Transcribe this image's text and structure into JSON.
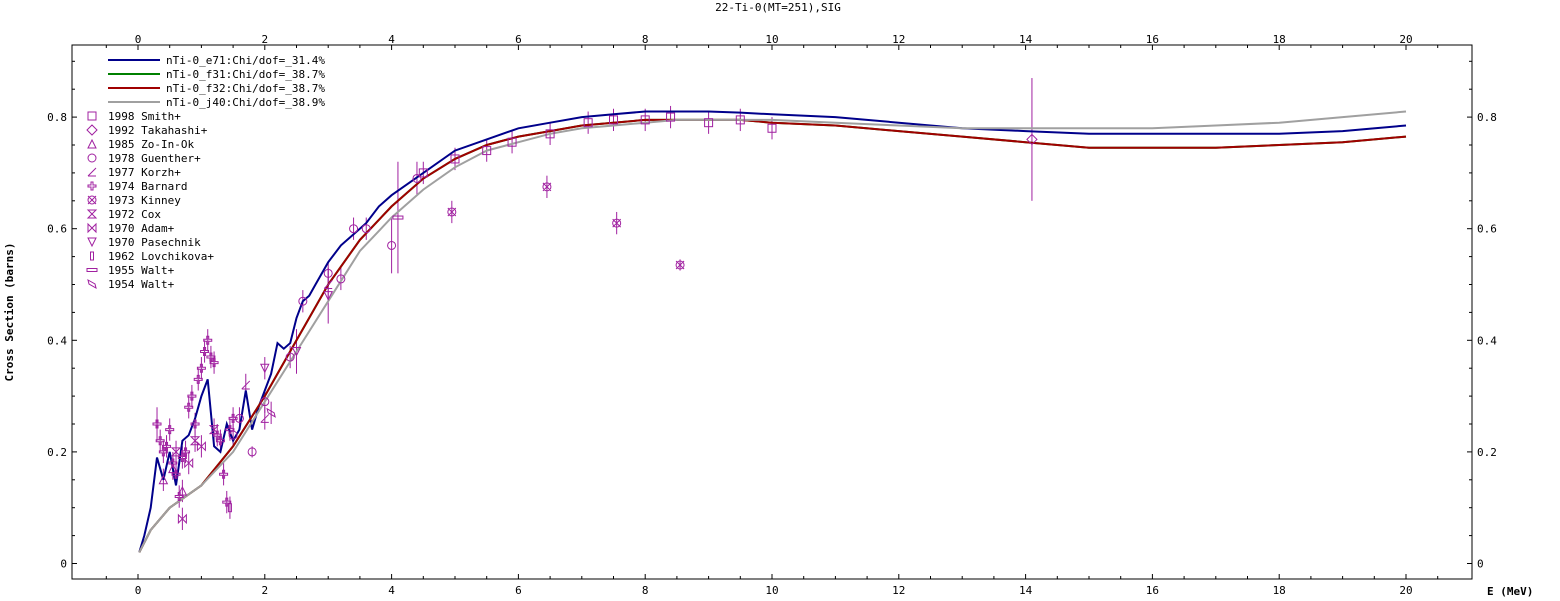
{
  "chart_data": {
    "type": "line",
    "title": "22-Ti-0(MT=251),SIG",
    "xlabel": "E (MeV)",
    "ylabel": "Cross Section (barns)",
    "xlim": [
      -1.0,
      21.0
    ],
    "ylim": [
      -0.015,
      0.925
    ],
    "x_ticks": [
      0,
      2,
      4,
      6,
      8,
      10,
      12,
      14,
      16,
      18,
      20
    ],
    "x_tick_labels": [
      "0",
      "2",
      "4",
      "6",
      "8",
      "10",
      "12",
      "14",
      "16",
      "18",
      "20"
    ],
    "y_ticks": [
      0,
      0.2,
      0.4,
      0.6,
      0.8
    ],
    "y_tick_labels": [
      "0",
      "0.2",
      "0.4",
      "0.6",
      "0.8"
    ],
    "grid": false,
    "legend_position": "top-left",
    "series": [
      {
        "name": "nTi-0_e71:Chi/dof=_31.4%",
        "color": "#00008b",
        "x": [
          0.02,
          0.1,
          0.2,
          0.3,
          0.4,
          0.5,
          0.6,
          0.7,
          0.8,
          0.9,
          1.0,
          1.1,
          1.2,
          1.3,
          1.4,
          1.5,
          1.6,
          1.7,
          1.8,
          1.9,
          2.0,
          2.1,
          2.2,
          2.3,
          2.4,
          2.5,
          2.6,
          2.7,
          2.8,
          2.9,
          3.0,
          3.2,
          3.4,
          3.6,
          3.8,
          4.0,
          4.5,
          5.0,
          5.5,
          6.0,
          6.5,
          7.0,
          7.5,
          8.0,
          8.5,
          9.0,
          9.5,
          10.0,
          11.0,
          12.0,
          13.0,
          14.0,
          15.0,
          16.0,
          17.0,
          18.0,
          19.0,
          20.0
        ],
        "y": [
          0.02,
          0.05,
          0.1,
          0.19,
          0.15,
          0.2,
          0.14,
          0.22,
          0.23,
          0.26,
          0.3,
          0.33,
          0.21,
          0.2,
          0.25,
          0.22,
          0.24,
          0.31,
          0.24,
          0.28,
          0.31,
          0.34,
          0.395,
          0.385,
          0.395,
          0.44,
          0.47,
          0.48,
          0.5,
          0.52,
          0.54,
          0.57,
          0.59,
          0.61,
          0.64,
          0.66,
          0.7,
          0.74,
          0.76,
          0.78,
          0.79,
          0.8,
          0.805,
          0.81,
          0.81,
          0.81,
          0.808,
          0.805,
          0.8,
          0.79,
          0.78,
          0.775,
          0.77,
          0.77,
          0.77,
          0.77,
          0.775,
          0.785
        ]
      },
      {
        "name": "nTi-0_f31:Chi/dof=_38.7%",
        "color": "#008000",
        "x": [
          0.02,
          0.2,
          0.5,
          1.0,
          1.5,
          2.0,
          2.5,
          3.0,
          3.5,
          4.0,
          4.5,
          5.0,
          5.5,
          6.0,
          6.5,
          7.0,
          7.5,
          8.0,
          8.5,
          9.0,
          9.5,
          10.0,
          11.0,
          12.0,
          13.0,
          14.0,
          15.0,
          16.0,
          17.0,
          18.0,
          19.0,
          20.0
        ],
        "y": [
          0.02,
          0.06,
          0.1,
          0.14,
          0.21,
          0.3,
          0.4,
          0.5,
          0.58,
          0.64,
          0.69,
          0.725,
          0.75,
          0.765,
          0.775,
          0.785,
          0.79,
          0.795,
          0.795,
          0.795,
          0.795,
          0.79,
          0.785,
          0.775,
          0.765,
          0.755,
          0.745,
          0.745,
          0.745,
          0.75,
          0.755,
          0.765
        ]
      },
      {
        "name": "nTi-0_f32:Chi/dof=_38.7%",
        "color": "#a00000",
        "x": [
          0.02,
          0.2,
          0.5,
          1.0,
          1.5,
          2.0,
          2.5,
          3.0,
          3.5,
          4.0,
          4.5,
          5.0,
          5.5,
          6.0,
          6.5,
          7.0,
          7.5,
          8.0,
          8.5,
          9.0,
          9.5,
          10.0,
          11.0,
          12.0,
          13.0,
          14.0,
          15.0,
          16.0,
          17.0,
          18.0,
          19.0,
          20.0
        ],
        "y": [
          0.02,
          0.06,
          0.1,
          0.14,
          0.21,
          0.3,
          0.4,
          0.5,
          0.58,
          0.64,
          0.69,
          0.725,
          0.75,
          0.765,
          0.775,
          0.785,
          0.79,
          0.795,
          0.795,
          0.795,
          0.795,
          0.79,
          0.785,
          0.775,
          0.765,
          0.755,
          0.745,
          0.745,
          0.745,
          0.75,
          0.755,
          0.765
        ]
      },
      {
        "name": "nTi-0_j40:Chi/dof=_38.9%",
        "color": "#a0a0a0",
        "x": [
          0.02,
          0.2,
          0.5,
          1.0,
          1.5,
          2.0,
          2.5,
          3.0,
          3.5,
          4.0,
          4.5,
          5.0,
          5.5,
          6.0,
          6.5,
          7.0,
          7.5,
          8.0,
          8.5,
          9.0,
          9.5,
          10.0,
          11.0,
          12.0,
          13.0,
          14.0,
          15.0,
          16.0,
          17.0,
          18.0,
          19.0,
          20.0
        ],
        "y": [
          0.02,
          0.06,
          0.1,
          0.14,
          0.2,
          0.29,
          0.38,
          0.47,
          0.56,
          0.62,
          0.67,
          0.71,
          0.74,
          0.755,
          0.77,
          0.78,
          0.785,
          0.79,
          0.795,
          0.795,
          0.795,
          0.795,
          0.79,
          0.785,
          0.78,
          0.78,
          0.78,
          0.78,
          0.785,
          0.79,
          0.8,
          0.81
        ]
      }
    ],
    "experiments": [
      {
        "name": "1998 Smith+",
        "marker": "square",
        "points": [
          [
            4.5,
            0.7,
            0.02
          ],
          [
            5.0,
            0.725,
            0.02
          ],
          [
            5.5,
            0.74,
            0.02
          ],
          [
            5.9,
            0.755,
            0.02
          ],
          [
            6.5,
            0.77,
            0.02
          ],
          [
            7.1,
            0.79,
            0.02
          ],
          [
            7.5,
            0.795,
            0.02
          ],
          [
            8.0,
            0.795,
            0.02
          ],
          [
            8.4,
            0.8,
            0.02
          ],
          [
            9.0,
            0.79,
            0.02
          ],
          [
            9.5,
            0.795,
            0.02
          ],
          [
            10.0,
            0.78,
            0.02
          ]
        ]
      },
      {
        "name": "1992 Takahashi+",
        "marker": "diamond",
        "points": [
          [
            14.1,
            0.76,
            0.11
          ]
        ]
      },
      {
        "name": "1985 Zo-In-Ok",
        "marker": "triangle-up",
        "points": [
          [
            0.4,
            0.15,
            0.02
          ],
          [
            0.55,
            0.17,
            0.02
          ],
          [
            0.7,
            0.13,
            0.02
          ]
        ]
      },
      {
        "name": "1978 Guenther+",
        "marker": "circle",
        "points": [
          [
            1.5,
            0.23,
            0.02
          ],
          [
            1.6,
            0.26,
            0.02
          ],
          [
            1.8,
            0.2,
            0.01
          ],
          [
            2.0,
            0.29,
            0.02
          ],
          [
            2.4,
            0.37,
            0.02
          ],
          [
            2.6,
            0.47,
            0.02
          ],
          [
            3.0,
            0.52,
            0.02
          ],
          [
            3.2,
            0.51,
            0.02
          ],
          [
            3.4,
            0.6,
            0.02
          ],
          [
            3.6,
            0.6,
            0.02
          ],
          [
            4.0,
            0.57,
            0.05
          ],
          [
            4.4,
            0.69,
            0.03
          ]
        ]
      },
      {
        "name": "1977 Korzh+",
        "marker": "slash",
        "points": [
          [
            1.7,
            0.32,
            0.02
          ],
          [
            2.0,
            0.26,
            0.02
          ],
          [
            3.0,
            0.5,
            0.03
          ]
        ]
      },
      {
        "name": "1974 Barnard",
        "marker": "cross",
        "points": [
          [
            0.3,
            0.25,
            0.03
          ],
          [
            0.35,
            0.22,
            0.02
          ],
          [
            0.4,
            0.2,
            0.02
          ],
          [
            0.45,
            0.21,
            0.02
          ],
          [
            0.5,
            0.24,
            0.02
          ],
          [
            0.55,
            0.18,
            0.02
          ],
          [
            0.6,
            0.16,
            0.02
          ],
          [
            0.65,
            0.12,
            0.02
          ],
          [
            0.7,
            0.19,
            0.02
          ],
          [
            0.75,
            0.2,
            0.02
          ],
          [
            0.8,
            0.28,
            0.02
          ],
          [
            0.85,
            0.3,
            0.02
          ],
          [
            0.9,
            0.25,
            0.02
          ],
          [
            0.95,
            0.33,
            0.02
          ],
          [
            1.0,
            0.35,
            0.02
          ],
          [
            1.05,
            0.38,
            0.02
          ],
          [
            1.1,
            0.4,
            0.02
          ],
          [
            1.15,
            0.37,
            0.02
          ],
          [
            1.2,
            0.36,
            0.02
          ],
          [
            1.25,
            0.23,
            0.02
          ],
          [
            1.3,
            0.22,
            0.02
          ],
          [
            1.35,
            0.16,
            0.02
          ],
          [
            1.4,
            0.11,
            0.02
          ],
          [
            1.45,
            0.24,
            0.02
          ],
          [
            1.5,
            0.26,
            0.02
          ]
        ]
      },
      {
        "name": "1973 Kinney",
        "marker": "x-circle",
        "points": [
          [
            4.95,
            0.63,
            0.02
          ],
          [
            6.45,
            0.675,
            0.02
          ],
          [
            7.55,
            0.61,
            0.02
          ],
          [
            8.55,
            0.535,
            0.01
          ]
        ]
      },
      {
        "name": "1972 Cox",
        "marker": "hourglass",
        "points": [
          [
            0.6,
            0.2,
            0.02
          ],
          [
            0.9,
            0.22,
            0.02
          ],
          [
            1.2,
            0.24,
            0.02
          ]
        ]
      },
      {
        "name": "1970 Adam+",
        "marker": "bowtie",
        "points": [
          [
            0.7,
            0.08,
            0.02
          ],
          [
            0.8,
            0.18,
            0.02
          ],
          [
            1.0,
            0.21,
            0.02
          ]
        ]
      },
      {
        "name": "1970 Pasechnik",
        "marker": "triangle-down",
        "points": [
          [
            2.0,
            0.35,
            0.02
          ],
          [
            2.5,
            0.38,
            0.04
          ],
          [
            3.0,
            0.48,
            0.05
          ]
        ]
      },
      {
        "name": "1962 Lovchikova+",
        "marker": "bar",
        "points": [
          [
            1.45,
            0.1,
            0.02
          ]
        ]
      },
      {
        "name": "1955 Walt+",
        "marker": "dash",
        "points": [
          [
            4.1,
            0.62,
            0.1
          ]
        ]
      },
      {
        "name": "1954 Walt+",
        "marker": "slant",
        "points": [
          [
            2.1,
            0.27,
            0.02
          ]
        ]
      }
    ]
  }
}
